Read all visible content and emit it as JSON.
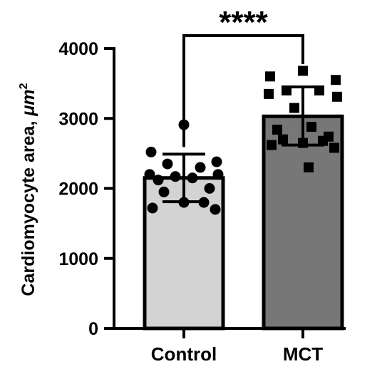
{
  "chart_data": {
    "type": "bar",
    "title": "",
    "xlabel": "",
    "ylabel": "Cardiomyocyte area, μm²",
    "ylabel_prefix": "Cardiomyocyte area, ",
    "ylabel_unit": "μm",
    "ylabel_exp": "2",
    "ylim": [
      0,
      4000
    ],
    "yticks": [
      0,
      1000,
      2000,
      3000,
      4000
    ],
    "grid": false,
    "categories": [
      "Control",
      "MCT"
    ],
    "values": [
      2150,
      3030
    ],
    "error_lower": [
      1810,
      2620
    ],
    "error_upper": [
      2490,
      3450
    ],
    "bar_colors": [
      "#d3d3d3",
      "#777777"
    ],
    "marker_shapes": [
      "circle",
      "square"
    ],
    "points": [
      [
        2910,
        2520,
        2380,
        2350,
        2300,
        2200,
        2200,
        2170,
        2150,
        2120,
        2000,
        1950,
        1800,
        1800,
        1720,
        1700
      ],
      [
        3680,
        3600,
        3550,
        3400,
        3400,
        3350,
        3310,
        3150,
        2880,
        2840,
        2740,
        2700,
        2680,
        2650,
        2620,
        2580,
        2300
      ]
    ],
    "significance": "****"
  }
}
